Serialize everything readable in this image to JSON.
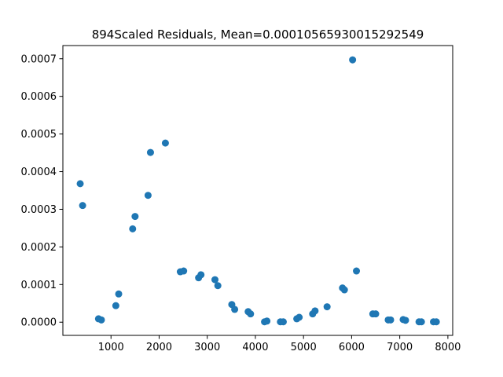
{
  "chart_data": {
    "type": "scatter",
    "title": "894Scaled Residuals, Mean=0.00010565930015292549",
    "xlabel": "",
    "ylabel": "",
    "xlim": [
      0,
      8100
    ],
    "ylim": [
      -3.5e-05,
      0.000735
    ],
    "xticks": [
      1000,
      2000,
      3000,
      4000,
      5000,
      6000,
      7000,
      8000
    ],
    "xtick_labels": [
      "1000",
      "2000",
      "3000",
      "4000",
      "5000",
      "6000",
      "7000",
      "8000"
    ],
    "yticks": [
      0,
      0.0001,
      0.0002,
      0.0003,
      0.0004,
      0.0005,
      0.0006,
      0.0007
    ],
    "ytick_labels": [
      "0.0000",
      "0.0001",
      "0.0002",
      "0.0003",
      "0.0004",
      "0.0005",
      "0.0006",
      "0.0007"
    ],
    "grid": false,
    "marker_color": "#1f77b4",
    "x": [
      360,
      410,
      740,
      800,
      1100,
      1160,
      1450,
      1500,
      1770,
      1820,
      2130,
      2440,
      2510,
      2820,
      2870,
      3160,
      3220,
      3510,
      3570,
      3850,
      3900,
      4190,
      4240,
      4520,
      4580,
      4860,
      4910,
      5190,
      5240,
      5490,
      5810,
      5850,
      6020,
      6100,
      6440,
      6500,
      6760,
      6810,
      7070,
      7120,
      7400,
      7450,
      7700,
      7760
    ],
    "y": [
      0.000368,
      0.00031,
      9e-06,
      6e-06,
      4.4e-05,
      7.5e-05,
      0.000248,
      0.000281,
      0.000337,
      0.000451,
      0.000476,
      0.000134,
      0.000136,
      0.000118,
      0.000126,
      0.000113,
      9.7e-05,
      4.7e-05,
      3.4e-05,
      2.8e-05,
      2.2e-05,
      1e-06,
      3e-06,
      1e-06,
      1e-06,
      9e-06,
      1.3e-05,
      2.2e-05,
      3e-05,
      4.1e-05,
      9.1e-05,
      8.6e-05,
      0.000697,
      0.000136,
      2.2e-05,
      2.2e-05,
      6e-06,
      6e-06,
      7e-06,
      5e-06,
      1e-06,
      1e-06,
      1e-06,
      1e-06
    ]
  }
}
